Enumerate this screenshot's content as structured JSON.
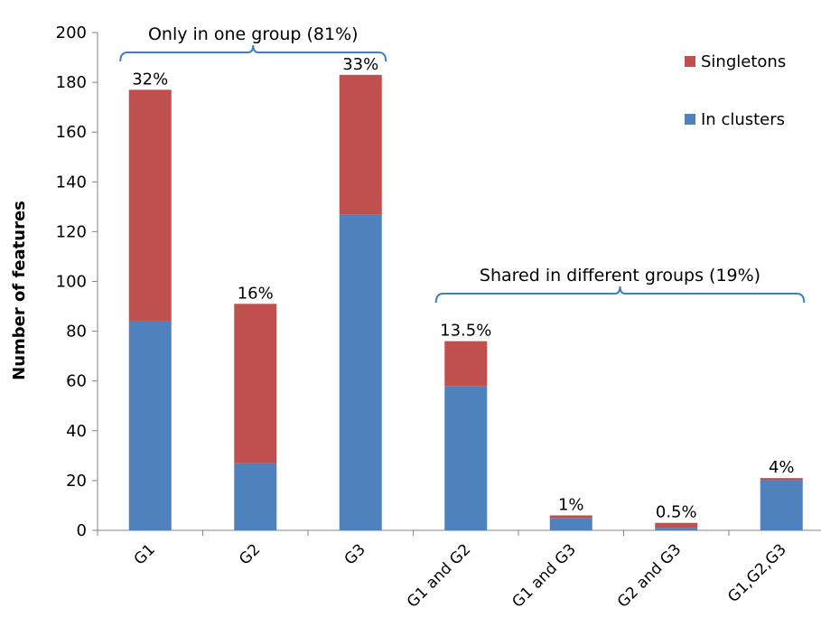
{
  "chart_data": {
    "type": "bar",
    "stacked": true,
    "title": "",
    "xlabel": "",
    "ylabel": "Number of features",
    "ylim": [
      0,
      200
    ],
    "yticks": [
      0,
      20,
      40,
      60,
      80,
      100,
      120,
      140,
      160,
      180,
      200
    ],
    "categories": [
      "G1",
      "G2",
      "G3",
      "G1 and G2",
      "G1 and G3",
      "G2 and G3",
      "G1,G2,G3"
    ],
    "series": [
      {
        "name": "In clusters",
        "color": "#4f81bd",
        "values": [
          84,
          27,
          127,
          58,
          5,
          1,
          20
        ]
      },
      {
        "name": "Singletons",
        "color": "#c0504d",
        "values": [
          93,
          64,
          56,
          18,
          1,
          2,
          1
        ]
      }
    ],
    "bar_labels": [
      "32%",
      "16%",
      "33%",
      "13.5%",
      "1%",
      "0.5%",
      "4%"
    ],
    "legend": {
      "placement": "top-right",
      "order": [
        "Singletons",
        "In clusters"
      ]
    },
    "grid": false,
    "annotations": [
      {
        "text": "Only in one group (81%)",
        "from_category": 0,
        "to_category": 2
      },
      {
        "text": "Shared in different groups (19%)",
        "from_category": 3,
        "to_category": 6
      }
    ],
    "bracket_color": "#3b7fc4"
  }
}
